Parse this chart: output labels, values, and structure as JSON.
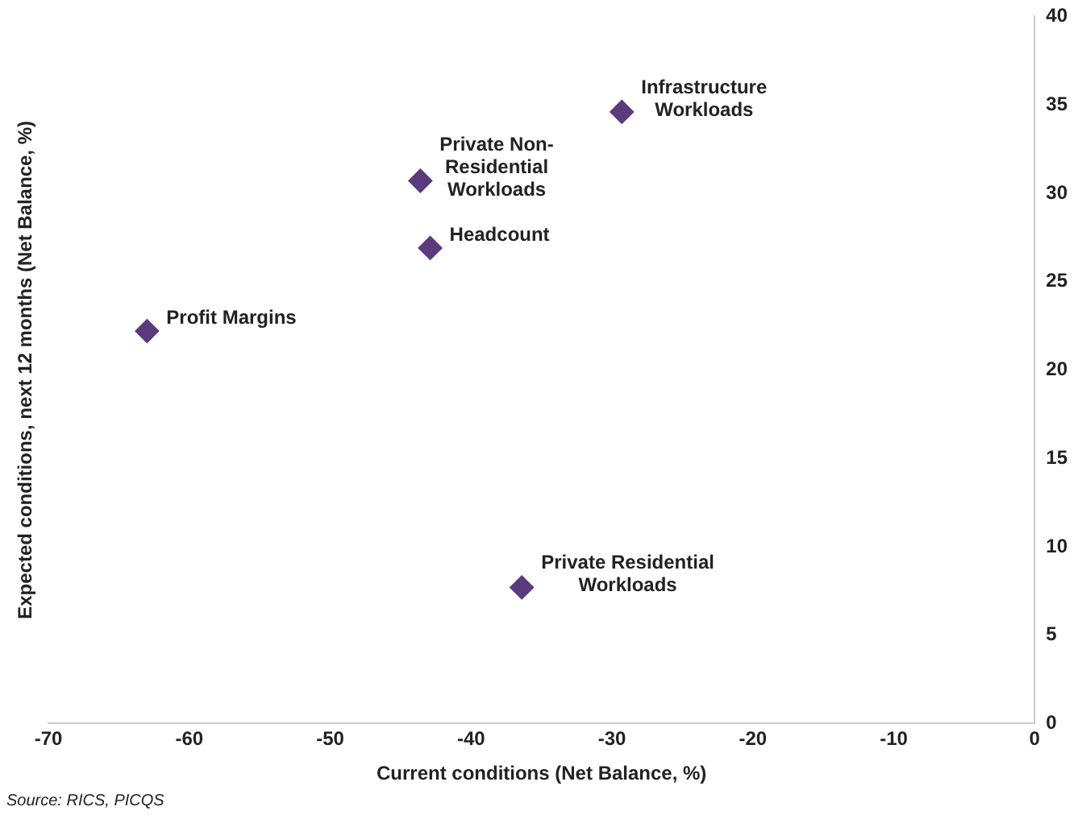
{
  "chart_data": {
    "type": "scatter",
    "xlabel": "Current conditions (Net Balance, %)",
    "ylabel": "Expected conditions, next 12 months (Net Balance, %)",
    "x": [
      -63,
      -42.9,
      -43.6,
      -29.3,
      -36.4
    ],
    "values": [
      22.2,
      26.9,
      30.7,
      34.6,
      7.7
    ],
    "color": "#5b3a7e",
    "marker": "diamond",
    "grid": false,
    "xlim": [
      -70,
      0
    ],
    "xticks": [
      -70,
      -60,
      -50,
      -40,
      -30,
      -20,
      -10,
      0
    ],
    "ylim": [
      0,
      40
    ],
    "yticks": [
      0,
      5,
      10,
      15,
      20,
      25,
      30,
      35,
      40
    ],
    "annotations": [
      {
        "text": "Profit Margins",
        "x": -63,
        "y": 22.2
      },
      {
        "text": "Headcount",
        "x": -42.9,
        "y": 26.9
      },
      {
        "text": "Private Non-Residential Workloads",
        "x": -43.6,
        "y": 30.7
      },
      {
        "text": "Infrastructure Workloads",
        "x": -29.3,
        "y": 34.6
      },
      {
        "text": "Private Residential Workloads",
        "x": -36.4,
        "y": 7.7
      },
      "Source: RICS, PICQS"
    ]
  }
}
